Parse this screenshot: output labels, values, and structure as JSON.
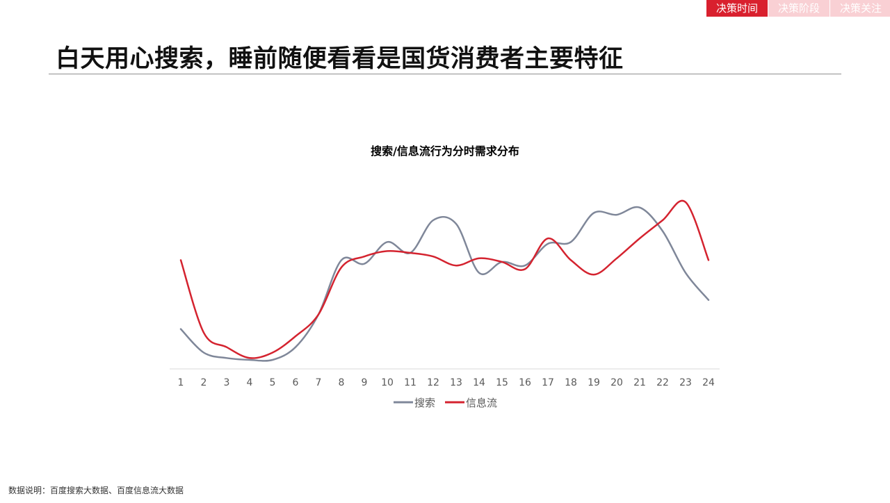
{
  "tabs": [
    {
      "label": "决策时间",
      "active": true
    },
    {
      "label": "决策阶段",
      "active": false
    },
    {
      "label": "决策关注",
      "active": false
    }
  ],
  "page": {
    "title": "白天用心搜索，睡前随便看看是国货消费者主要特征"
  },
  "footer": {
    "note": "数据说明：百度搜索大数据、百度信息流大数据"
  },
  "colors": {
    "accent": "#d9202e",
    "accent_light": "#f9d0d4",
    "search_series": "#7f8799",
    "feed_series": "#d4232f"
  },
  "chart_data": {
    "type": "line",
    "title": "搜索/信息流行为分时需求分布",
    "xlabel": "",
    "ylabel": "",
    "categories": [
      "1",
      "2",
      "3",
      "4",
      "5",
      "6",
      "7",
      "8",
      "9",
      "10",
      "11",
      "12",
      "13",
      "14",
      "15",
      "16",
      "17",
      "18",
      "19",
      "20",
      "21",
      "22",
      "23",
      "24"
    ],
    "ylim": [
      0,
      100
    ],
    "grid": false,
    "legend_position": "bottom",
    "smooth": true,
    "series": [
      {
        "name": "搜索",
        "color": "#7f8799",
        "values": [
          22,
          9,
          6,
          5,
          5,
          12,
          30,
          60,
          58,
          70,
          64,
          82,
          80,
          53,
          59,
          57,
          69,
          70,
          86,
          85,
          89,
          76,
          53,
          38
        ]
      },
      {
        "name": "信息流",
        "color": "#d4232f",
        "values": [
          60,
          20,
          12,
          6,
          9,
          18,
          30,
          56,
          62,
          65,
          64,
          62,
          57,
          61,
          59,
          55,
          72,
          60,
          52,
          61,
          72,
          82,
          92,
          60
        ]
      }
    ]
  }
}
